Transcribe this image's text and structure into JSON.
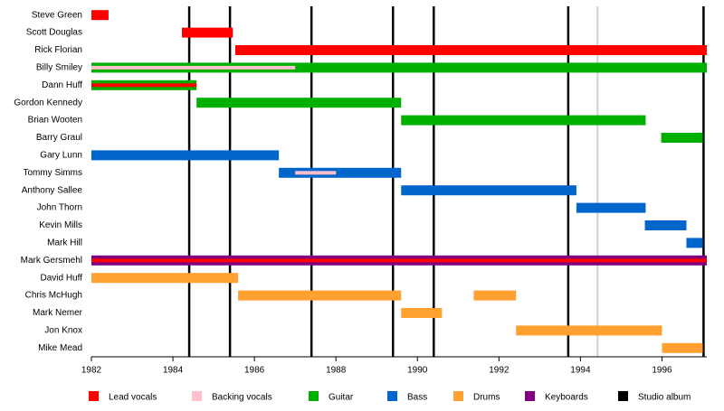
{
  "chart_data": {
    "type": "timeline",
    "categories": [
      "Steve Green",
      "Scott Douglas",
      "Rick Florian",
      "Billy Smiley",
      "Dann Huff",
      "Gordon Kennedy",
      "Brian Wooten",
      "Barry Graul",
      "Gary Lunn",
      "Tommy Simms",
      "Anthony Sallee",
      "John Thorn",
      "Kevin Mills",
      "Mark Hill",
      "Mark Gersmehl",
      "David Huff",
      "Chris McHugh",
      "Mark Nemer",
      "Jon Knox",
      "Mike Mead"
    ],
    "roles": [
      {
        "name": "Lead vocals",
        "color": "#ff0000"
      },
      {
        "name": "Backing vocals",
        "color": "#ffc0cb"
      },
      {
        "name": "Guitar",
        "color": "#00b000"
      },
      {
        "name": "Bass",
        "color": "#0066cc"
      },
      {
        "name": "Drums",
        "color": "#ffa030"
      },
      {
        "name": "Keyboards",
        "color": "#800080"
      },
      {
        "name": "Studio album",
        "color": "#000000"
      }
    ],
    "bars": [
      {
        "row": 0,
        "role": 0,
        "start": 1982.0,
        "end": 1982.42,
        "thin": false
      },
      {
        "row": 1,
        "role": 0,
        "start": 1984.22,
        "end": 1985.47,
        "thin": false
      },
      {
        "row": 2,
        "role": 0,
        "start": 1985.53,
        "end": 1997.1,
        "thin": false
      },
      {
        "row": 3,
        "role": 2,
        "start": 1982.0,
        "end": 1997.1,
        "thin": false
      },
      {
        "row": 3,
        "role": 1,
        "start": 1982.0,
        "end": 1987.0,
        "thin": true
      },
      {
        "row": 4,
        "role": 2,
        "start": 1982.0,
        "end": 1984.58,
        "thin": false
      },
      {
        "row": 4,
        "role": 0,
        "start": 1982.0,
        "end": 1984.58,
        "thin": true
      },
      {
        "row": 5,
        "role": 2,
        "start": 1984.58,
        "end": 1989.6,
        "thin": false
      },
      {
        "row": 6,
        "role": 2,
        "start": 1989.6,
        "end": 1995.6,
        "thin": false
      },
      {
        "row": 7,
        "role": 2,
        "start": 1995.98,
        "end": 1997.0,
        "thin": false
      },
      {
        "row": 8,
        "role": 3,
        "start": 1982.0,
        "end": 1986.6,
        "thin": false
      },
      {
        "row": 9,
        "role": 3,
        "start": 1986.6,
        "end": 1989.6,
        "thin": false
      },
      {
        "row": 9,
        "role": 1,
        "start": 1987.0,
        "end": 1988.0,
        "thin": true
      },
      {
        "row": 10,
        "role": 3,
        "start": 1989.6,
        "end": 1993.9,
        "thin": false
      },
      {
        "row": 11,
        "role": 3,
        "start": 1993.9,
        "end": 1995.6,
        "thin": false
      },
      {
        "row": 12,
        "role": 3,
        "start": 1995.58,
        "end": 1996.6,
        "thin": false
      },
      {
        "row": 13,
        "role": 3,
        "start": 1996.6,
        "end": 1997.0,
        "thin": false
      },
      {
        "row": 14,
        "role": 5,
        "start": 1982.0,
        "end": 1997.1,
        "thin": false
      },
      {
        "row": 14,
        "role": 0,
        "start": 1982.0,
        "end": 1997.1,
        "thin": true
      },
      {
        "row": 15,
        "role": 4,
        "start": 1982.0,
        "end": 1985.6,
        "thin": false
      },
      {
        "row": 16,
        "role": 4,
        "start": 1985.6,
        "end": 1989.6,
        "thin": false
      },
      {
        "row": 16,
        "role": 4,
        "start": 1991.38,
        "end": 1992.42,
        "thin": false
      },
      {
        "row": 17,
        "role": 4,
        "start": 1989.6,
        "end": 1990.6,
        "thin": false
      },
      {
        "row": 18,
        "role": 4,
        "start": 1992.42,
        "end": 1996.0,
        "thin": false
      },
      {
        "row": 19,
        "role": 4,
        "start": 1996.0,
        "end": 1997.0,
        "thin": false
      }
    ],
    "albums": [
      1984.4,
      1985.4,
      1987.4,
      1989.4,
      1990.4,
      1993.7,
      1997.02
    ],
    "markers": [
      {
        "x": 1994.42,
        "color": "#d0d0d0"
      }
    ],
    "xlim": [
      1982,
      1997.1
    ],
    "xticks": [
      1982,
      1984,
      1986,
      1988,
      1990,
      1992,
      1994,
      1996
    ]
  }
}
